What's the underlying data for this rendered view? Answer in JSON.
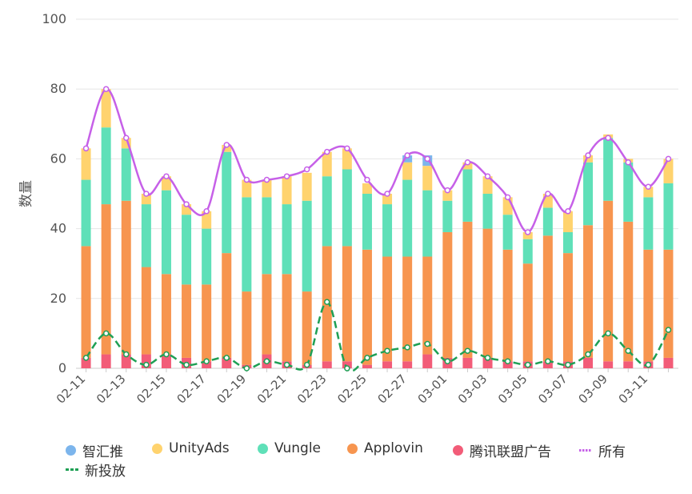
{
  "chart_data": {
    "type": "bar",
    "ylabel": "数量",
    "ylim": [
      0,
      100
    ],
    "yticks": [
      0,
      20,
      40,
      60,
      80,
      100
    ],
    "dates": [
      "02-11",
      "02-12",
      "02-13",
      "02-14",
      "02-15",
      "02-16",
      "02-17",
      "02-18",
      "02-19",
      "02-20",
      "02-21",
      "02-22",
      "02-23",
      "02-24",
      "02-25",
      "02-26",
      "02-27",
      "02-28",
      "03-01",
      "03-02",
      "03-03",
      "03-04",
      "03-05",
      "03-06",
      "03-07",
      "03-08",
      "03-09",
      "03-10",
      "03-11",
      "03-12"
    ],
    "xtick_labels": [
      "02-11",
      "02-13",
      "02-15",
      "02-17",
      "02-19",
      "02-21",
      "02-23",
      "02-25",
      "02-27",
      "03-01",
      "03-03",
      "03-05",
      "03-07",
      "03-09",
      "03-11"
    ],
    "series": [
      {
        "name": "智汇推",
        "color": "#7cb5ec",
        "type": "stacked-bar",
        "values": [
          0,
          0,
          0,
          0,
          0,
          0,
          0,
          0,
          0,
          0,
          0,
          0,
          0,
          0,
          0,
          0,
          2,
          3,
          0,
          0,
          0,
          0,
          0,
          0,
          0,
          0,
          0,
          0,
          0,
          0
        ]
      },
      {
        "name": "UnityAds",
        "color": "#ffd36e",
        "type": "stacked-bar",
        "values": [
          9,
          11,
          3,
          3,
          4,
          3,
          5,
          2,
          5,
          5,
          8,
          8,
          7,
          6,
          3,
          3,
          5,
          7,
          3,
          2,
          5,
          5,
          2,
          4,
          6,
          2,
          1,
          1,
          3,
          7
        ]
      },
      {
        "name": "Vungle",
        "color": "#5fe0b8",
        "type": "stacked-bar",
        "values": [
          19,
          22,
          15,
          18,
          24,
          20,
          16,
          29,
          27,
          22,
          20,
          26,
          20,
          22,
          16,
          15,
          22,
          19,
          9,
          15,
          10,
          10,
          7,
          8,
          6,
          18,
          18,
          17,
          15,
          19
        ]
      },
      {
        "name": "Applovin",
        "color": "#f7954f",
        "type": "stacked-bar",
        "values": [
          32,
          43,
          44,
          25,
          23,
          21,
          22,
          30,
          21,
          23,
          25,
          21,
          33,
          33,
          33,
          30,
          30,
          28,
          36,
          39,
          37,
          32,
          28,
          36,
          31,
          38,
          46,
          40,
          32,
          31
        ]
      },
      {
        "name": "腾讯联盟广告",
        "color": "#f25c78",
        "type": "stacked-bar",
        "values": [
          3,
          4,
          4,
          4,
          4,
          3,
          2,
          3,
          1,
          4,
          2,
          1,
          2,
          2,
          1,
          2,
          2,
          4,
          3,
          3,
          3,
          2,
          2,
          2,
          2,
          3,
          2,
          2,
          2,
          3
        ]
      },
      {
        "name": "所有",
        "color": "#c660e8",
        "type": "line-dotted",
        "values": [
          63,
          80,
          66,
          50,
          55,
          47,
          45,
          64,
          54,
          54,
          55,
          57,
          62,
          63,
          54,
          50,
          61,
          60,
          51,
          59,
          55,
          49,
          39,
          50,
          45,
          61,
          66,
          59,
          52,
          60
        ]
      },
      {
        "name": "新投放",
        "color": "#1fa055",
        "type": "line-dashed",
        "values": [
          3,
          10,
          4,
          1,
          4,
          1,
          2,
          3,
          0,
          2,
          1,
          1,
          19,
          0,
          3,
          5,
          6,
          7,
          2,
          5,
          3,
          2,
          1,
          2,
          1,
          4,
          10,
          5,
          1,
          11
        ]
      }
    ],
    "grid": "horizontal",
    "legend_position": "bottom"
  },
  "legend": [
    {
      "label": "智汇推",
      "color": "#7cb5ec",
      "marker": "dot"
    },
    {
      "label": "UnityAds",
      "color": "#ffd36e",
      "marker": "dot"
    },
    {
      "label": "Vungle",
      "color": "#5fe0b8",
      "marker": "dot"
    },
    {
      "label": "Applovin",
      "color": "#f7954f",
      "marker": "dot"
    },
    {
      "label": "腾讯联盟广告",
      "color": "#f25c78",
      "marker": "dot"
    },
    {
      "label": "所有",
      "color": "#c660e8",
      "marker": "dotted-line"
    },
    {
      "label": "新投放",
      "color": "#1fa055",
      "marker": "dashed-line"
    }
  ]
}
